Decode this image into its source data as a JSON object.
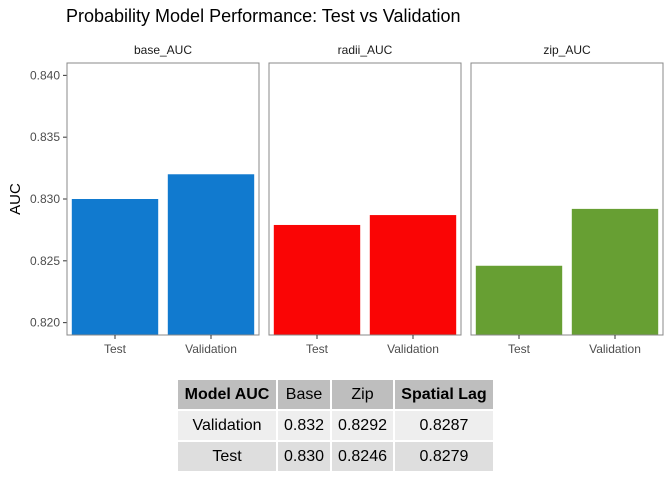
{
  "chart_data": {
    "type": "bar",
    "title": "Probability Model Performance: Test vs Validation",
    "ylabel": "AUC",
    "xlabel": "",
    "ylim": [
      0.819,
      0.841
    ],
    "yticks": [
      "0.820",
      "0.825",
      "0.830",
      "0.835",
      "0.840"
    ],
    "categories": [
      "Test",
      "Validation"
    ],
    "panels": [
      {
        "name": "base_AUC",
        "color": "#117ACF",
        "values": [
          0.83,
          0.832
        ]
      },
      {
        "name": "radii_AUC",
        "color": "#FA0505",
        "values": [
          0.8279,
          0.8287
        ]
      },
      {
        "name": "zip_AUC",
        "color": "#679F33",
        "values": [
          0.8246,
          0.8292
        ]
      }
    ],
    "grid": false,
    "legend": "none"
  },
  "table": {
    "headers": [
      "Model AUC",
      "Base",
      "Zip",
      "Spatial Lag"
    ],
    "rows": [
      [
        "Validation",
        "0.832",
        "0.8292",
        "0.8287"
      ],
      [
        "Test",
        "0.830",
        "0.8246",
        "0.8279"
      ]
    ]
  }
}
